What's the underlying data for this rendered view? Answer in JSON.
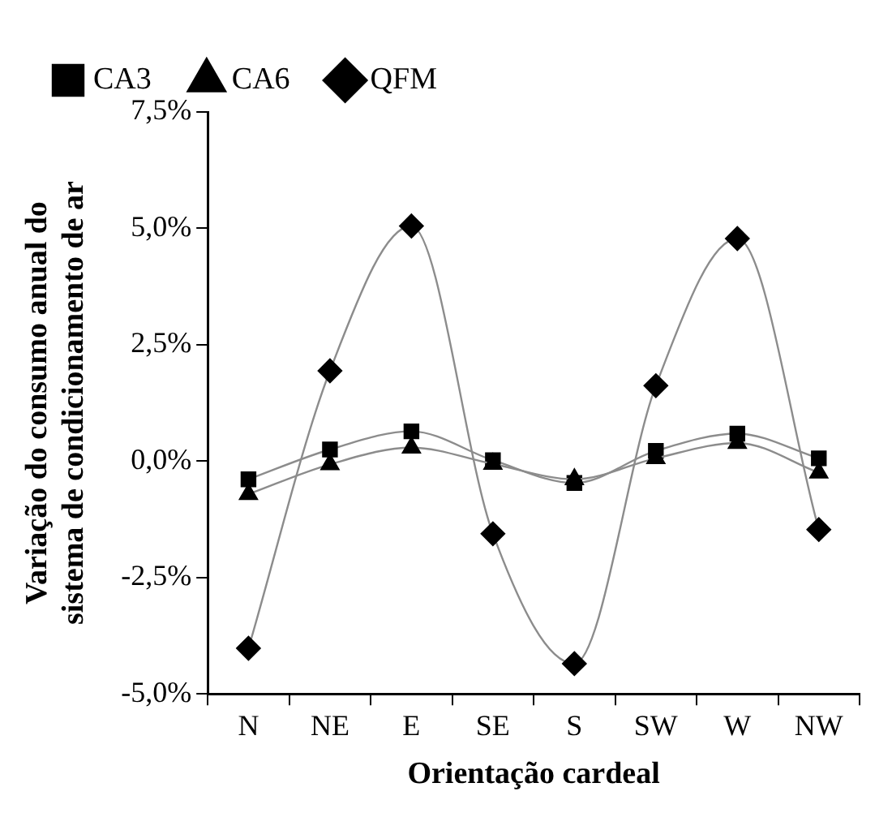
{
  "chart_data": {
    "type": "line",
    "xlabel": "Orientação cardeal",
    "ylabel": "Variação do consumo anual do sistema de condicionamento de ar",
    "categories": [
      "N",
      "NE",
      "E",
      "SE",
      "S",
      "SW",
      "W",
      "NW"
    ],
    "series": [
      {
        "name": "CA3",
        "color": "#000000",
        "marker": "square",
        "values": [
          -0.39,
          0.25,
          0.64,
          0.02,
          -0.47,
          0.22,
          0.59,
          0.06
        ]
      },
      {
        "name": "CA6",
        "color": "#000000",
        "marker": "triangle",
        "values": [
          -0.71,
          -0.07,
          0.29,
          -0.06,
          -0.39,
          0.06,
          0.39,
          -0.25
        ]
      },
      {
        "name": "QFM",
        "color": "#000000",
        "marker": "diamond",
        "values": [
          -4.02,
          1.94,
          5.05,
          -1.56,
          -4.35,
          1.62,
          4.78,
          -1.47
        ]
      }
    ],
    "ylim": [
      -5,
      7.5
    ],
    "yticks": [
      {
        "value": -5,
        "label": "-5,0%"
      },
      {
        "value": -2.5,
        "label": "-2,5%"
      },
      {
        "value": 0,
        "label": "0,0%"
      },
      {
        "value": 2.5,
        "label": "2,5%"
      },
      {
        "value": 5,
        "label": "5,0%"
      },
      {
        "value": 7.5,
        "label": "7,5%"
      }
    ],
    "grid": false,
    "legend": "top"
  }
}
